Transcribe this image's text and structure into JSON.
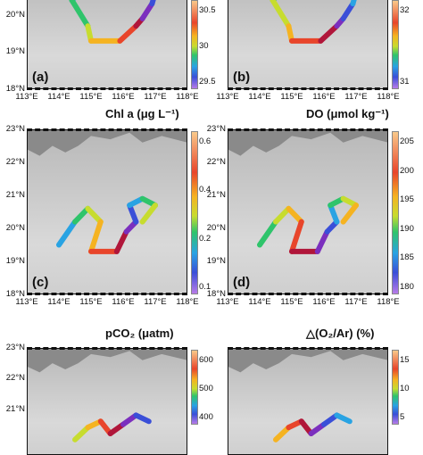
{
  "colors": {
    "land": "#8a8a8a",
    "sea_deep": "#d9d9d9",
    "sea_shallow": "#b8b8b8",
    "track": [
      "#7b2fbe",
      "#3a4fd8",
      "#29a3e3",
      "#2fc46b",
      "#c7dc2f",
      "#f5b321",
      "#e8452b",
      "#b0163a"
    ]
  },
  "panels": [
    {
      "id": "a",
      "label": "(a)",
      "title": "",
      "lat_ticks": [
        "20°N",
        "19°N",
        "18°N"
      ],
      "lon_ticks": [
        "113°E",
        "114°E",
        "115°E",
        "116°E",
        "117°E",
        "118°E"
      ],
      "cbar_ticks": [
        "30.5",
        "30",
        "29.5"
      ],
      "track": [
        [
          115.5,
          20.9
        ],
        [
          115.0,
          20.8
        ],
        [
          114.7,
          20.6
        ],
        [
          114.4,
          20.4
        ],
        [
          114.9,
          19.7
        ],
        [
          115.0,
          19.3
        ],
        [
          115.9,
          19.3
        ],
        [
          116.4,
          19.7
        ],
        [
          116.6,
          19.9
        ],
        [
          116.9,
          20.3
        ],
        [
          117.0,
          20.6
        ],
        [
          116.6,
          20.9
        ]
      ]
    },
    {
      "id": "b",
      "label": "(b)",
      "title": "",
      "lat_ticks": [],
      "lon_ticks": [
        "113°E",
        "114°E",
        "115°E",
        "116°E",
        "117°E",
        "118°E"
      ],
      "cbar_ticks": [
        "32",
        "31"
      ],
      "track": [
        [
          115.5,
          20.9
        ],
        [
          115.0,
          20.8
        ],
        [
          114.7,
          20.6
        ],
        [
          114.4,
          20.4
        ],
        [
          114.9,
          19.7
        ],
        [
          115.0,
          19.3
        ],
        [
          115.9,
          19.3
        ],
        [
          116.4,
          19.7
        ],
        [
          116.6,
          19.9
        ],
        [
          116.9,
          20.3
        ],
        [
          117.0,
          20.6
        ],
        [
          116.6,
          20.9
        ]
      ]
    },
    {
      "id": "c",
      "label": "(c)",
      "title": "Chl a (μg L⁻¹)",
      "lat_ticks": [
        "23°N",
        "22°N",
        "21°N",
        "20°N",
        "19°N",
        "18°N"
      ],
      "lon_ticks": [
        "113°E",
        "114°E",
        "115°E",
        "116°E",
        "117°E",
        "118°E"
      ],
      "cbar_ticks": [
        "0.6",
        "0.4",
        "0.2",
        "0.1"
      ],
      "track": [
        [
          114.0,
          19.5
        ],
        [
          114.5,
          20.2
        ],
        [
          114.9,
          20.6
        ],
        [
          115.3,
          20.2
        ],
        [
          115.0,
          19.3
        ],
        [
          115.8,
          19.3
        ],
        [
          116.1,
          19.9
        ],
        [
          116.4,
          20.2
        ],
        [
          116.2,
          20.7
        ],
        [
          116.6,
          20.9
        ],
        [
          117.0,
          20.7
        ],
        [
          116.6,
          20.2
        ]
      ]
    },
    {
      "id": "d",
      "label": "(d)",
      "title": "DO (μmol kg⁻¹)",
      "lat_ticks": [
        "23°N",
        "22°N",
        "21°N",
        "20°N",
        "19°N",
        "18°N"
      ],
      "lon_ticks": [
        "113°E",
        "114°E",
        "115°E",
        "116°E",
        "117°E",
        "118°E"
      ],
      "cbar_ticks": [
        "205",
        "200",
        "195",
        "190",
        "185",
        "180"
      ],
      "track": [
        [
          114.0,
          19.5
        ],
        [
          114.5,
          20.2
        ],
        [
          114.9,
          20.6
        ],
        [
          115.3,
          20.2
        ],
        [
          115.0,
          19.3
        ],
        [
          115.8,
          19.3
        ],
        [
          116.1,
          19.9
        ],
        [
          116.4,
          20.2
        ],
        [
          116.2,
          20.7
        ],
        [
          116.6,
          20.9
        ],
        [
          117.0,
          20.7
        ],
        [
          116.6,
          20.2
        ]
      ]
    },
    {
      "id": "e",
      "label": "",
      "title": "pCO₂ (μatm)",
      "lat_ticks": [
        "23°N",
        "22°N",
        "21°N"
      ],
      "lon_ticks": [],
      "cbar_ticks": [
        "600",
        "500",
        "400"
      ],
      "track": [
        [
          114.5,
          20.0
        ],
        [
          114.9,
          20.4
        ],
        [
          115.3,
          20.6
        ],
        [
          115.6,
          20.2
        ],
        [
          116.0,
          20.5
        ],
        [
          116.4,
          20.8
        ],
        [
          116.8,
          20.6
        ]
      ]
    },
    {
      "id": "f",
      "label": "",
      "title": "△(O₂/Ar) (%)",
      "lat_ticks": [],
      "lon_ticks": [],
      "cbar_ticks": [
        "15",
        "10",
        "5"
      ],
      "track": [
        [
          114.5,
          20.0
        ],
        [
          114.9,
          20.4
        ],
        [
          115.3,
          20.6
        ],
        [
          115.6,
          20.2
        ],
        [
          116.0,
          20.5
        ],
        [
          116.4,
          20.8
        ],
        [
          116.8,
          20.6
        ]
      ]
    }
  ]
}
